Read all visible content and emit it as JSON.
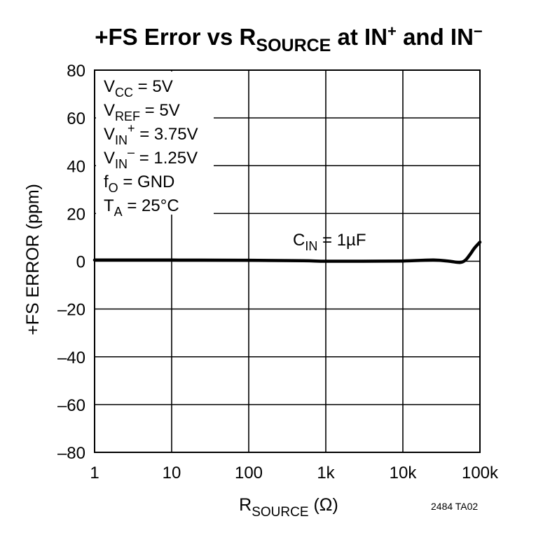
{
  "chart_data": {
    "type": "line",
    "title": {
      "prefix": "+FS Error vs R",
      "sub": "SOURCE",
      "mid": " at IN",
      "sup1": "+",
      "and": " and IN",
      "sup2": "−"
    },
    "xlabel": {
      "main": "R",
      "sub": "SOURCE",
      "unit": " (Ω)"
    },
    "ylabel": "+FS ERROR (ppm)",
    "x_scale": "log",
    "xlim": [
      1,
      100000
    ],
    "ylim": [
      -80,
      80
    ],
    "x_ticks": [
      {
        "value": 1,
        "label": "1"
      },
      {
        "value": 10,
        "label": "10"
      },
      {
        "value": 100,
        "label": "100"
      },
      {
        "value": 1000,
        "label": "1k"
      },
      {
        "value": 10000,
        "label": "10k"
      },
      {
        "value": 100000,
        "label": "100k"
      }
    ],
    "y_ticks": [
      {
        "value": 80,
        "label": "80"
      },
      {
        "value": 60,
        "label": "60"
      },
      {
        "value": 40,
        "label": "40"
      },
      {
        "value": 20,
        "label": "20"
      },
      {
        "value": 0,
        "label": "0"
      },
      {
        "value": -20,
        "label": "–20"
      },
      {
        "value": -40,
        "label": "–40"
      },
      {
        "value": -60,
        "label": "–60"
      },
      {
        "value": -80,
        "label": "–80"
      }
    ],
    "grid": true,
    "series": [
      {
        "name": "C_IN = 1µF",
        "x": [
          1,
          10,
          100,
          500,
          1000,
          3000,
          10000,
          25000,
          40000,
          55000,
          65000,
          75000,
          85000,
          100000
        ],
        "y": [
          0.5,
          0.5,
          0.4,
          0.2,
          0,
          0,
          0.1,
          0.5,
          0,
          -0.5,
          0.5,
          3,
          5.5,
          8
        ]
      }
    ],
    "curve_label": {
      "main": "C",
      "sub": "IN",
      "rest": " = 1µF"
    },
    "conditions": [
      {
        "main": "V",
        "sub": "CC",
        "rest": " = 5V"
      },
      {
        "main": "V",
        "sub": "REF",
        "rest": " = 5V"
      },
      {
        "main": "V",
        "sub": "IN",
        "sup": "+",
        "rest": " = 3.75V"
      },
      {
        "main": "V",
        "sub": "IN",
        "sup": "–",
        "rest": " = 1.25V"
      },
      {
        "main": "f",
        "sub": "O",
        "rest": " = GND"
      },
      {
        "main": "T",
        "sub": "A",
        "rest": " = 25°C"
      }
    ],
    "figure_id": "2484 TA02"
  }
}
